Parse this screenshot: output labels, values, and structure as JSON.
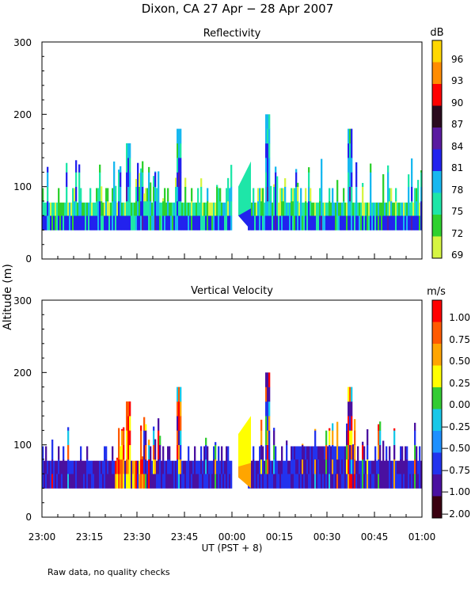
{
  "title": "Dixon, CA 27 Apr − 28 Apr 2007",
  "ylabel": "Altitude (m)",
  "xlabel": "UT  (PST + 8)",
  "footnote": "Raw data, no quality checks",
  "x_ticks": [
    "23:00",
    "23:15",
    "23:30",
    "23:45",
    "00:00",
    "00:15",
    "00:30",
    "00:45",
    "01:00"
  ],
  "chart_data": [
    {
      "type": "heatmap",
      "title": "Reflectivity",
      "colorbar_unit": "dB",
      "colorbar_labels": [
        "96",
        "93",
        "90",
        "87",
        "84",
        "81",
        "78",
        "75",
        "72",
        "69"
      ],
      "colorbar_colors": [
        "#ffd700",
        "#ff8c00",
        "#ff0000",
        "#2a0a1e",
        "#5a1aa0",
        "#2222ee",
        "#17b8f0",
        "#1ee6a8",
        "#2ed12e",
        "#d6f542"
      ],
      "colors": [
        "#d6f542",
        "#2ed12e",
        "#1ee6a8",
        "#17b8f0",
        "#2222ee",
        "#5a1aa0"
      ],
      "y_ticks": [
        "0",
        "100",
        "200",
        "300"
      ],
      "ylim": [
        0,
        300
      ],
      "xlim_minutes": [
        0,
        120
      ],
      "gap_minutes": [
        0,
        5
      ],
      "tallest_echoes": [
        {
          "time": "23:27",
          "top_m": 160
        },
        {
          "time": "23:43",
          "top_m": 180
        },
        {
          "time": "00:11",
          "top_m": 200
        },
        {
          "time": "00:37",
          "top_m": 180
        }
      ]
    },
    {
      "type": "heatmap",
      "title": "Vertical Velocity",
      "colorbar_unit": "m/s",
      "colorbar_labels": [
        "1.00",
        "0.75",
        "0.50",
        "0.25",
        "0.00",
        "−0.25",
        "−0.50",
        "−0.75",
        "−1.00",
        "−2.00"
      ],
      "colorbar_colors": [
        "#ff0000",
        "#ff5a00",
        "#ffa500",
        "#ffff00",
        "#33cc33",
        "#18c8e8",
        "#1e90ff",
        "#2233ee",
        "#4a10a0",
        "#3a0010"
      ],
      "colors": [
        "#4a10a0",
        "#2233ee",
        "#1e90ff",
        "#18c8e8",
        "#33cc33",
        "#ffff00",
        "#ffa500",
        "#ff5a00",
        "#ff0000"
      ],
      "y_ticks": [
        "0",
        "100",
        "200",
        "300"
      ],
      "ylim": [
        0,
        300
      ],
      "xlim_minutes": [
        0,
        120
      ],
      "gap_minutes": [
        0,
        5
      ],
      "tallest_echoes": [
        {
          "time": "23:27",
          "top_m": 160
        },
        {
          "time": "23:43",
          "top_m": 180
        },
        {
          "time": "00:11",
          "top_m": 200
        },
        {
          "time": "00:37",
          "top_m": 180
        }
      ]
    }
  ]
}
